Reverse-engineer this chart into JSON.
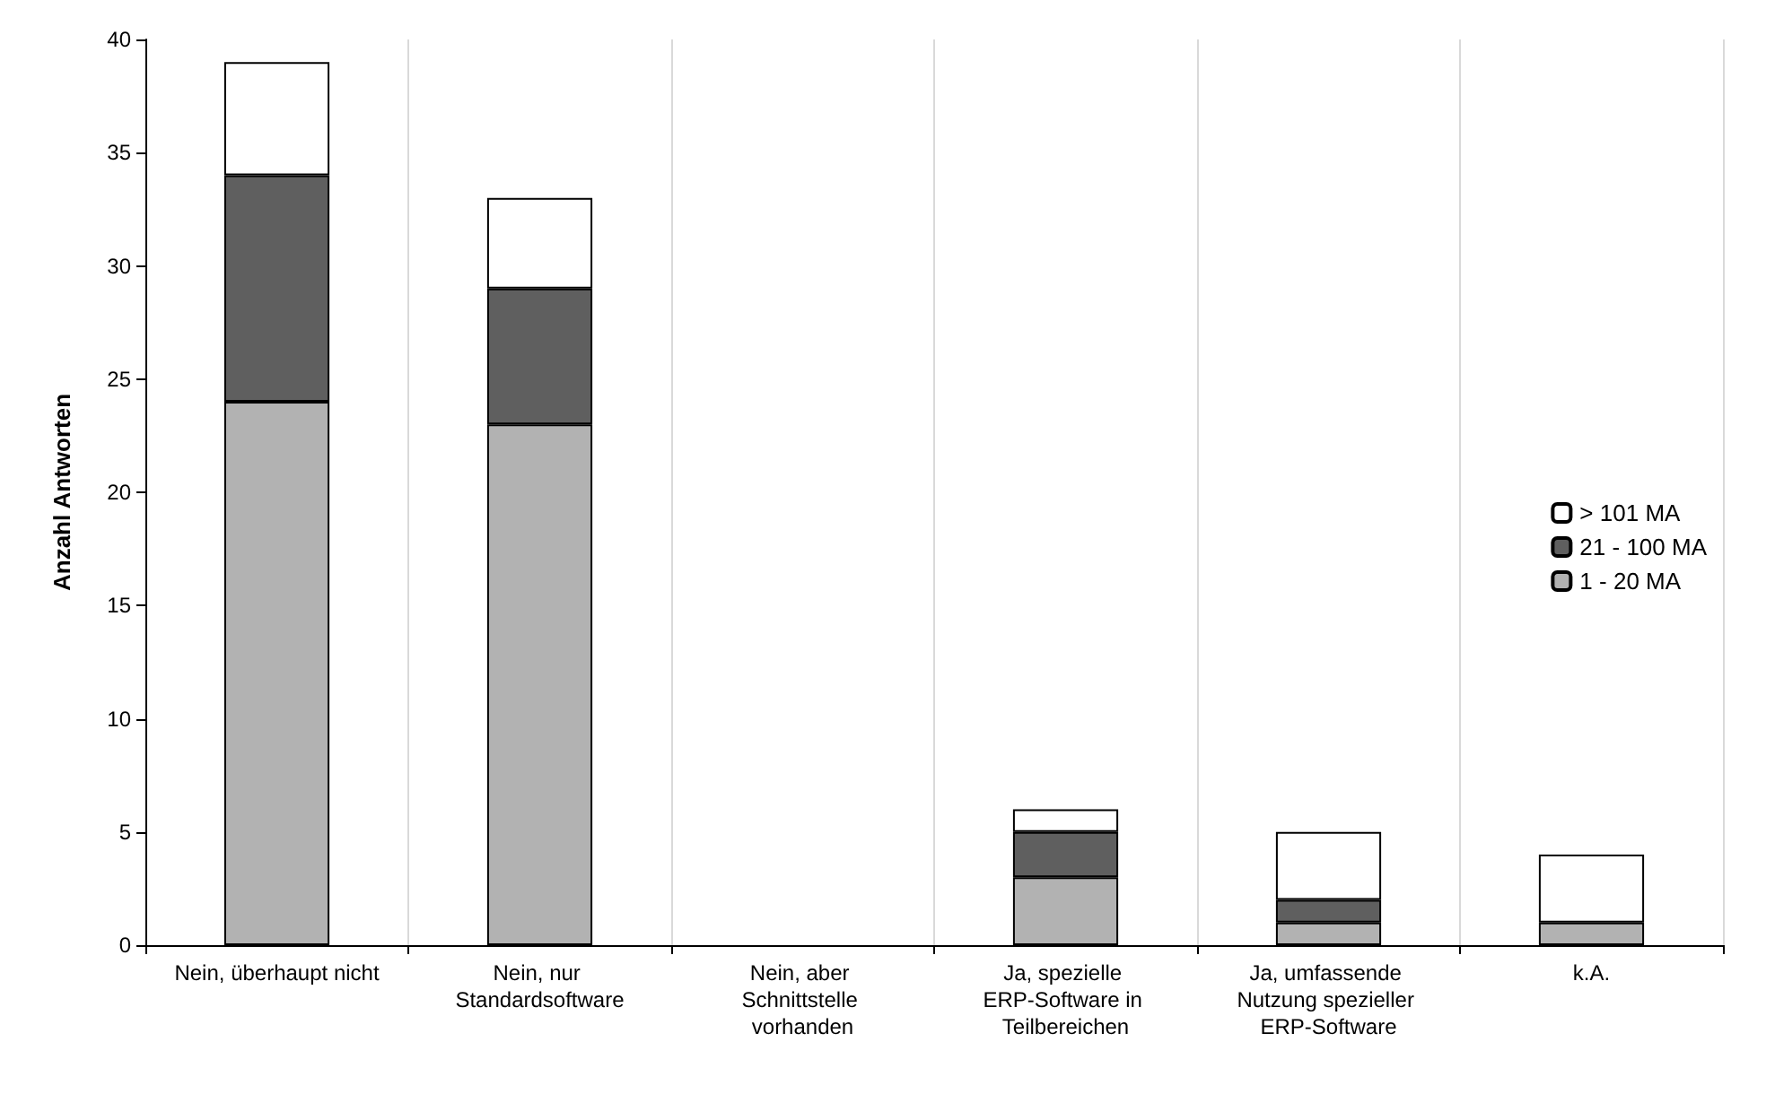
{
  "chart_data": {
    "type": "bar",
    "stacked": true,
    "ylabel": "Anzahl Antworten",
    "categories": [
      "Nein, überhaupt nicht",
      "Nein, nur Standardsoftware",
      "Nein, aber Schnittstelle vorhanden",
      "Ja, spezielle ERP-Software in Teilbereichen",
      "Ja, umfassende Nutzung spezieller ERP-Software",
      "k.A."
    ],
    "series": [
      {
        "name": "1 - 20 MA",
        "color": "#b2b2b2",
        "values": [
          24,
          23,
          0,
          3,
          1,
          1
        ]
      },
      {
        "name": "21 - 100 MA",
        "color": "#5f5f5f",
        "values": [
          10,
          6,
          0,
          2,
          1,
          0
        ]
      },
      {
        "name": "> 101 MA",
        "color": "#ffffff",
        "values": [
          5,
          4,
          0,
          1,
          3,
          3
        ]
      }
    ],
    "ylim": [
      0,
      40
    ],
    "yticks": [
      0,
      5,
      10,
      15,
      20,
      25,
      30,
      35,
      40
    ],
    "grid": "x",
    "legend": "right"
  }
}
